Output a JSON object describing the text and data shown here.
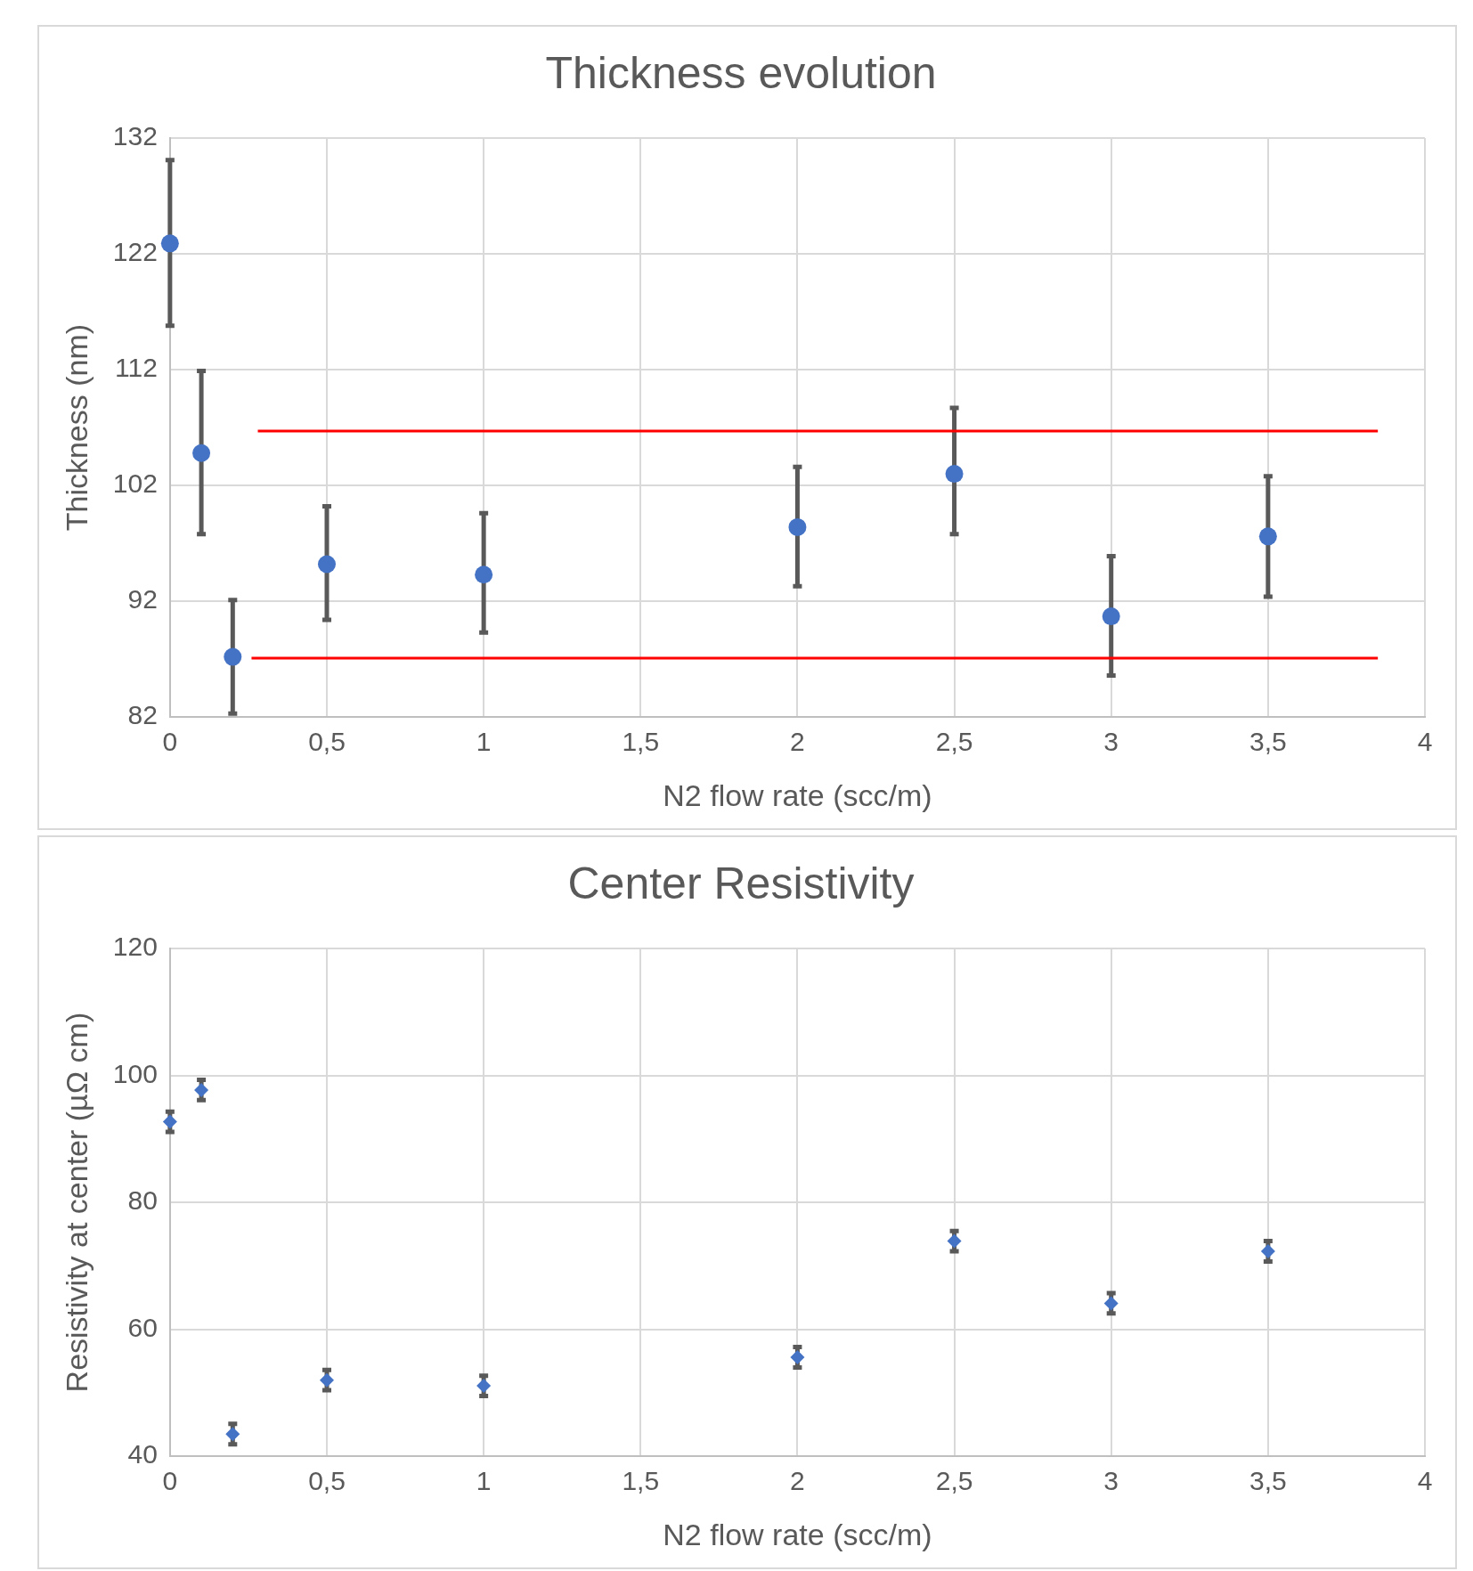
{
  "chart_data": [
    {
      "type": "scatter",
      "title": "Thickness evolution",
      "xlabel": "N2 flow rate (scc/m)",
      "ylabel": "Thickness (nm)",
      "xlim": [
        0,
        4
      ],
      "xticks": [
        0,
        {
          "value": 0.5,
          "label": "0,5"
        },
        1,
        {
          "value": 1.5,
          "label": "1,5"
        },
        2,
        {
          "value": 2.5,
          "label": "2,5"
        },
        3,
        {
          "value": 3.5,
          "label": "3,5"
        },
        4
      ],
      "ylim": [
        82,
        132
      ],
      "yticks": [
        82,
        92,
        102,
        112,
        122,
        132
      ],
      "grid": true,
      "marker": "circle",
      "series": [
        {
          "color": "#4472c4",
          "x": [
            0,
            0.1,
            0.2,
            0.5,
            1,
            2,
            2.5,
            3,
            3.5
          ],
          "values": [
            122.9,
            104.8,
            87.2,
            95.2,
            94.3,
            98.4,
            103.0,
            90.7,
            97.6
          ],
          "errors": [
            [
              115.8,
              130.1
            ],
            [
              97.8,
              111.9
            ],
            [
              82.3,
              92.1
            ],
            [
              90.4,
              100.2
            ],
            [
              89.3,
              99.6
            ],
            [
              93.3,
              103.6
            ],
            [
              97.8,
              108.7
            ],
            [
              85.6,
              95.9
            ],
            [
              92.4,
              102.8
            ]
          ]
        },
        {
          "type": "line",
          "color": "#ff0000",
          "marker": "none",
          "x": [
            0.28,
            3.85
          ],
          "values": [
            106.7,
            106.7
          ]
        },
        {
          "type": "line",
          "color": "#ff0000",
          "marker": "none",
          "x": [
            0.26,
            3.85
          ],
          "values": [
            87.1,
            87.1
          ]
        }
      ]
    },
    {
      "type": "scatter",
      "title": "Center Resistivity",
      "xlabel": "N2 flow rate (scc/m)",
      "ylabel": "Resistivity at center (µΩ cm)",
      "xlim": [
        0,
        4
      ],
      "xticks": [
        0,
        {
          "value": 0.5,
          "label": "0,5"
        },
        1,
        {
          "value": 1.5,
          "label": "1,5"
        },
        2,
        {
          "value": 2.5,
          "label": "2,5"
        },
        3,
        {
          "value": 3.5,
          "label": "3,5"
        },
        4
      ],
      "ylim": [
        40,
        120
      ],
      "yticks": [
        40,
        60,
        80,
        100,
        120
      ],
      "grid": true,
      "marker": "diamond",
      "series": [
        {
          "color": "#4472c4",
          "x": [
            0,
            0.1,
            0.2,
            0.5,
            1,
            2,
            2.5,
            3,
            3.5
          ],
          "values": [
            92.7,
            97.7,
            43.5,
            52.0,
            51.1,
            55.6,
            73.9,
            64.1,
            72.3
          ],
          "errors": [
            1.6,
            1.6,
            1.6,
            1.6,
            1.6,
            1.6,
            1.6,
            1.6,
            1.6
          ]
        }
      ]
    }
  ]
}
